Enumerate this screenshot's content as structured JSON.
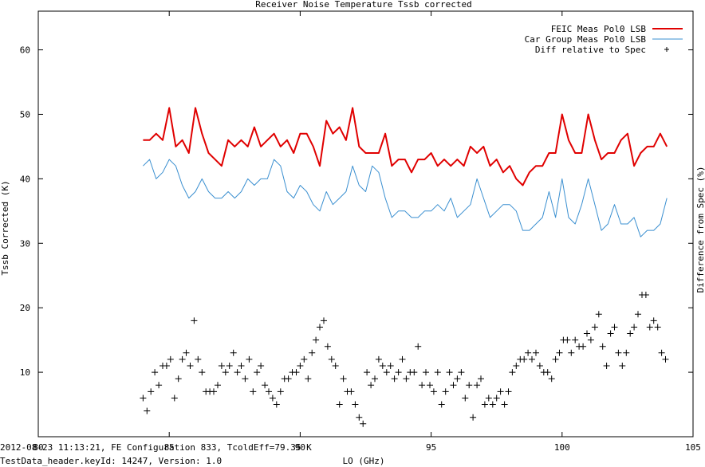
{
  "chart_data": {
    "type": "line",
    "title": "Receiver Noise Temperature Tssb corrected",
    "xlabel": "LO (GHz)",
    "ylabel": "Tssb Corrected (K)",
    "y2label": "Difference from Spec (%)",
    "xlim": [
      80,
      105
    ],
    "ylim": [
      0,
      66
    ],
    "xticks": [
      80,
      85,
      90,
      95,
      100,
      105
    ],
    "yticks": [
      10,
      20,
      30,
      40,
      50,
      60
    ],
    "grid": false,
    "legend_position": "top-right",
    "series": [
      {
        "name": "FEIC Meas Pol0 LSB",
        "style": "line",
        "color": "#e00000",
        "x": [
          84.0,
          84.25,
          84.5,
          84.75,
          85.0,
          85.25,
          85.5,
          85.75,
          86.0,
          86.25,
          86.5,
          86.75,
          87.0,
          87.25,
          87.5,
          87.75,
          88.0,
          88.25,
          88.5,
          88.75,
          89.0,
          89.25,
          89.5,
          89.75,
          90.0,
          90.25,
          90.5,
          90.75,
          91.0,
          91.25,
          91.5,
          91.75,
          92.0,
          92.25,
          92.5,
          92.75,
          93.0,
          93.25,
          93.5,
          93.75,
          94.0,
          94.25,
          94.5,
          94.75,
          95.0,
          95.25,
          95.5,
          95.75,
          96.0,
          96.25,
          96.5,
          96.75,
          97.0,
          97.25,
          97.5,
          97.75,
          98.0,
          98.25,
          98.5,
          98.75,
          99.0,
          99.25,
          99.5,
          99.75,
          100.0,
          100.25,
          100.5,
          100.75,
          101.0,
          101.25,
          101.5,
          101.75,
          102.0,
          102.25,
          102.5,
          102.75,
          103.0,
          103.25,
          103.5,
          103.75,
          104.0
        ],
        "values": [
          46,
          46,
          47,
          46,
          51,
          45,
          46,
          44,
          51,
          47,
          44,
          43,
          42,
          46,
          45,
          46,
          45,
          48,
          45,
          46,
          47,
          45,
          46,
          44,
          47,
          47,
          45,
          42,
          49,
          47,
          48,
          46,
          51,
          45,
          44,
          44,
          44,
          47,
          42,
          43,
          43,
          41,
          43,
          43,
          44,
          42,
          43,
          42,
          43,
          42,
          45,
          44,
          45,
          42,
          43,
          41,
          42,
          40,
          39,
          41,
          42,
          42,
          44,
          44,
          50,
          46,
          44,
          44,
          50,
          46,
          43,
          44,
          44,
          46,
          47,
          42,
          44,
          45,
          45,
          47,
          45
        ]
      },
      {
        "name": "Car Group Meas Pol0 LSB",
        "style": "line",
        "color": "#3a8fd0",
        "x": [
          84.0,
          84.25,
          84.5,
          84.75,
          85.0,
          85.25,
          85.5,
          85.75,
          86.0,
          86.25,
          86.5,
          86.75,
          87.0,
          87.25,
          87.5,
          87.75,
          88.0,
          88.25,
          88.5,
          88.75,
          89.0,
          89.25,
          89.5,
          89.75,
          90.0,
          90.25,
          90.5,
          90.75,
          91.0,
          91.25,
          91.5,
          91.75,
          92.0,
          92.25,
          92.5,
          92.75,
          93.0,
          93.25,
          93.5,
          93.75,
          94.0,
          94.25,
          94.5,
          94.75,
          95.0,
          95.25,
          95.5,
          95.75,
          96.0,
          96.25,
          96.5,
          96.75,
          97.0,
          97.25,
          97.5,
          97.75,
          98.0,
          98.25,
          98.5,
          98.75,
          99.0,
          99.25,
          99.5,
          99.75,
          100.0,
          100.25,
          100.5,
          100.75,
          101.0,
          101.25,
          101.5,
          101.75,
          102.0,
          102.25,
          102.5,
          102.75,
          103.0,
          103.25,
          103.5,
          103.75,
          104.0
        ],
        "values": [
          42,
          43,
          40,
          41,
          43,
          42,
          39,
          37,
          38,
          40,
          38,
          37,
          37,
          38,
          37,
          38,
          40,
          39,
          40,
          40,
          43,
          42,
          38,
          37,
          39,
          38,
          36,
          35,
          38,
          36,
          37,
          38,
          42,
          39,
          38,
          42,
          41,
          37,
          34,
          35,
          35,
          34,
          34,
          35,
          35,
          36,
          35,
          37,
          34,
          35,
          36,
          40,
          37,
          34,
          35,
          36,
          36,
          35,
          32,
          32,
          33,
          34,
          38,
          34,
          40,
          34,
          33,
          36,
          40,
          36,
          32,
          33,
          36,
          33,
          33,
          34,
          31,
          32,
          32,
          33,
          37
        ]
      },
      {
        "name": "Diff relative to Spec",
        "style": "points",
        "marker": "+",
        "color": "#000000",
        "axis": "y2",
        "x": [
          84.0,
          84.15,
          84.3,
          84.45,
          84.6,
          84.75,
          84.9,
          85.05,
          85.2,
          85.35,
          85.5,
          85.65,
          85.8,
          85.95,
          86.1,
          86.25,
          86.4,
          86.55,
          86.7,
          86.85,
          87.0,
          87.15,
          87.3,
          87.45,
          87.6,
          87.75,
          87.9,
          88.05,
          88.2,
          88.35,
          88.5,
          88.65,
          88.8,
          88.95,
          89.1,
          89.25,
          89.4,
          89.55,
          89.7,
          89.85,
          90.0,
          90.15,
          90.3,
          90.45,
          90.6,
          90.75,
          90.9,
          91.05,
          91.2,
          91.35,
          91.5,
          91.65,
          91.8,
          91.95,
          92.1,
          92.25,
          92.4,
          92.55,
          92.7,
          92.85,
          93.0,
          93.15,
          93.3,
          93.45,
          93.6,
          93.75,
          93.9,
          94.05,
          94.2,
          94.35,
          94.5,
          94.65,
          94.8,
          94.95,
          95.1,
          95.25,
          95.4,
          95.55,
          95.7,
          95.85,
          96.0,
          96.15,
          96.3,
          96.45,
          96.6,
          96.75,
          96.9,
          97.05,
          97.2,
          97.35,
          97.5,
          97.65,
          97.8,
          97.95,
          98.1,
          98.25,
          98.4,
          98.55,
          98.7,
          98.85,
          99.0,
          99.15,
          99.3,
          99.45,
          99.6,
          99.75,
          99.9,
          100.05,
          100.2,
          100.35,
          100.5,
          100.65,
          100.8,
          100.95,
          101.1,
          101.25,
          101.4,
          101.55,
          101.7,
          101.85,
          102.0,
          102.15,
          102.3,
          102.45,
          102.6,
          102.75,
          102.9,
          103.05,
          103.2,
          103.35,
          103.5,
          103.65,
          103.8,
          103.95
        ],
        "values": [
          6,
          4,
          7,
          10,
          8,
          11,
          11,
          12,
          6,
          9,
          12,
          13,
          11,
          18,
          12,
          10,
          7,
          7,
          7,
          8,
          11,
          10,
          11,
          13,
          10,
          11,
          9,
          12,
          7,
          10,
          11,
          8,
          7,
          6,
          5,
          7,
          9,
          9,
          10,
          10,
          11,
          12,
          9,
          13,
          15,
          17,
          18,
          14,
          12,
          11,
          5,
          9,
          7,
          7,
          5,
          3,
          2,
          10,
          8,
          9,
          12,
          11,
          10,
          11,
          9,
          10,
          12,
          9,
          10,
          10,
          14,
          8,
          10,
          8,
          7,
          10,
          5,
          7,
          10,
          8,
          9,
          10,
          6,
          8,
          3,
          8,
          9,
          5,
          6,
          5,
          6,
          7,
          5,
          7,
          10,
          11,
          12,
          12,
          13,
          12,
          13,
          11,
          10,
          10,
          9,
          12,
          13,
          15,
          15,
          13,
          15,
          14,
          14,
          16,
          15,
          17,
          19,
          14,
          11,
          16,
          17,
          13,
          11,
          13,
          16,
          17,
          19,
          22,
          22,
          17,
          18,
          17,
          13,
          12
        ]
      }
    ]
  },
  "footer": {
    "line1": "2012-08-23 11:13:21, FE Configuration 833, TcoldEff=79.35 K",
    "line2": "TestData_header.keyId: 14247, Version: 1.0"
  }
}
